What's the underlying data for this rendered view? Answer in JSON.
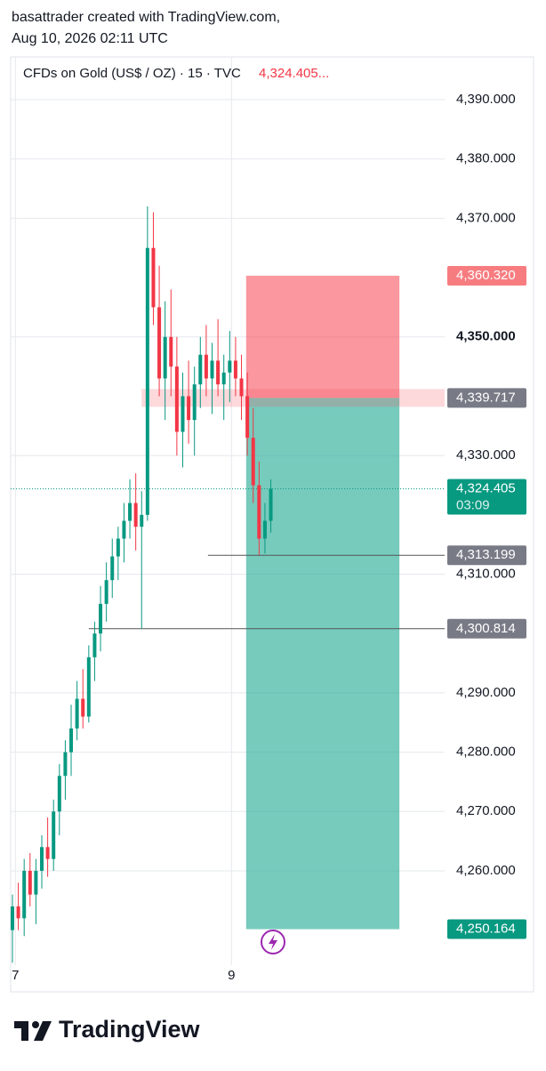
{
  "header": {
    "line1": "basattrader created with TradingView.com,",
    "line2": "Aug 10, 2026 02:11 UTC"
  },
  "footer": {
    "brand": "TradingView"
  },
  "chart_data": {
    "type": "candlestick",
    "title": "CFDs on Gold (US$ / OZ) · 15 · TVC",
    "last_price_label": "4,324.405...",
    "up_color": "#089981",
    "down_color": "#f23645",
    "x": [
      0,
      1,
      2,
      3,
      4,
      5,
      6,
      7,
      8,
      9,
      10,
      11,
      12,
      13,
      14,
      15,
      16,
      17,
      18,
      19,
      20,
      21,
      22,
      23,
      24,
      25,
      26,
      27,
      28,
      29,
      30,
      31,
      32,
      33,
      34,
      35,
      36,
      37,
      38,
      39,
      40,
      41,
      42,
      43,
      44
    ],
    "open": [
      4250,
      4254,
      4252,
      4260,
      4256,
      4260,
      4264,
      4262,
      4270,
      4276,
      4280,
      4284,
      4289,
      4286,
      4296,
      4300,
      4305,
      4309,
      4313,
      4316,
      4319,
      4322,
      4318,
      4320,
      4365,
      4355,
      4343,
      4350,
      4345,
      4334,
      4340,
      4336,
      4342,
      4347,
      4343,
      4346,
      4342,
      4344,
      4346,
      4343,
      4340,
      4333,
      4325,
      4316,
      4319
    ],
    "high": [
      4256,
      4258,
      4262,
      4263,
      4262,
      4266,
      4269,
      4272,
      4278,
      4282,
      4288,
      4292,
      4294,
      4298,
      4302,
      4308,
      4312,
      4316,
      4318,
      4322,
      4326,
      4327,
      4324,
      4372,
      4371,
      4362,
      4356,
      4358,
      4350,
      4344,
      4346,
      4345,
      4350,
      4352,
      4349,
      4353,
      4347,
      4351,
      4350,
      4347,
      4344,
      4338,
      4329,
      4322,
      4326
    ],
    "low": [
      4244.5,
      4250,
      4249,
      4254,
      4251,
      4257,
      4259,
      4260,
      4266,
      4272,
      4276,
      4282,
      4284,
      4285,
      4292,
      4297,
      4302,
      4306,
      4309,
      4312,
      4316,
      4314,
      4300.8,
      4319,
      4352,
      4340,
      4336,
      4340,
      4330,
      4328,
      4332,
      4330,
      4338,
      4340,
      4337,
      4340,
      4336,
      4339,
      4340,
      4336,
      4330,
      4322,
      4313.2,
      4313.5,
      4317
    ],
    "close": [
      4254,
      4252,
      4260,
      4256,
      4260,
      4264,
      4262,
      4270,
      4276,
      4280,
      4284,
      4289,
      4286,
      4296,
      4300,
      4305,
      4309,
      4313,
      4316,
      4319,
      4322,
      4318,
      4320,
      4365,
      4355,
      4343,
      4350,
      4345,
      4334,
      4340,
      4336,
      4342,
      4347,
      4343,
      4346,
      4342,
      4344,
      4346,
      4343,
      4340,
      4333,
      4325,
      4316,
      4319,
      4324.405
    ],
    "xlim": [
      -0.3,
      73.6
    ],
    "xticks": [
      {
        "value": 0.5,
        "label": "7"
      },
      {
        "value": 37.3,
        "label": "9"
      }
    ],
    "ylim": [
      4244.1,
      4397.2
    ],
    "yticks": [
      {
        "value": 4260,
        "label": "4,260.000"
      },
      {
        "value": 4270,
        "label": "4,270.000"
      },
      {
        "value": 4280,
        "label": "4,280.000"
      },
      {
        "value": 4290,
        "label": "4,290.000"
      },
      {
        "value": 4310,
        "label": "4,310.000"
      },
      {
        "value": 4330,
        "label": "4,330.000"
      },
      {
        "value": 4350,
        "label": "4,350.000"
      },
      {
        "value": 4370,
        "label": "4,370.000"
      },
      {
        "value": 4380,
        "label": "4,380.000"
      },
      {
        "value": 4390,
        "label": "4,390.000"
      }
    ],
    "bold_tick": 4350,
    "grid": true,
    "position": {
      "stop": 4360.32,
      "entry": 4339.717,
      "target": 4250.164,
      "x_start": 39.8,
      "x_end": 65.9,
      "stop_color": "#f7525f",
      "target_color": "#22ab94"
    },
    "levels": [
      {
        "value": 4313.199,
        "x_start": 33.3
      },
      {
        "value": 4300.814,
        "x_start": 13
      }
    ],
    "price_labels": [
      {
        "value": 4360.32,
        "label": "4,360.320",
        "color": "#f77c80"
      },
      {
        "value": 4339.717,
        "label": "4,339.717",
        "color": "#787b86"
      },
      {
        "value": 4324.405,
        "label": "4,324.405",
        "color": "#089981",
        "timer": "03:09"
      },
      {
        "value": 4313.199,
        "label": "4,313.199",
        "color": "#787b86"
      },
      {
        "value": 4300.814,
        "label": "4,300.814",
        "color": "#787b86"
      },
      {
        "value": 4250.164,
        "label": "4,250.164",
        "color": "#089981"
      }
    ]
  }
}
